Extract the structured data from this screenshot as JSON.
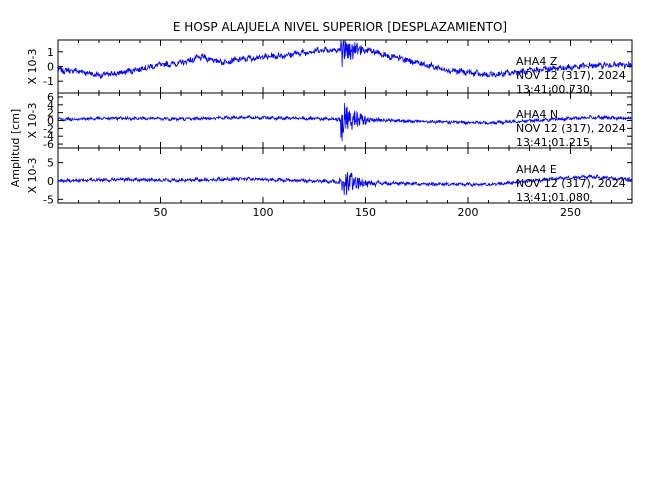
{
  "chart_data": {
    "type": "line",
    "title": "E HOSP ALAJUELA NIVEL SUPERIOR [DESPLAZAMIENTO]",
    "ylabel": "Amplitud [cm]",
    "xlim": [
      0,
      280
    ],
    "x_ticks": [
      50,
      100,
      150,
      200,
      250
    ],
    "line_color": "#0000ff",
    "event_x": 138,
    "panels": [
      {
        "name": "Z",
        "scale_label": "X 10-3",
        "ylim": [
          -1.8,
          1.8
        ],
        "y_ticks": [
          -1,
          0,
          1
        ],
        "station_label": "AHA4   Z",
        "date_label": "NOV 12 (317), 2024",
        "time_label": "13:41:00.730",
        "trace_keypoints": [
          [
            0,
            -0.25
          ],
          [
            10,
            -0.3
          ],
          [
            20,
            -0.6
          ],
          [
            30,
            -0.45
          ],
          [
            40,
            -0.15
          ],
          [
            50,
            0.1
          ],
          [
            60,
            0.25
          ],
          [
            70,
            0.65
          ],
          [
            80,
            0.3
          ],
          [
            90,
            0.5
          ],
          [
            100,
            0.65
          ],
          [
            110,
            0.75
          ],
          [
            120,
            0.95
          ],
          [
            130,
            1.15
          ],
          [
            138,
            1.1
          ],
          [
            150,
            1.15
          ],
          [
            160,
            0.75
          ],
          [
            170,
            0.45
          ],
          [
            180,
            0.1
          ],
          [
            190,
            -0.25
          ],
          [
            200,
            -0.4
          ],
          [
            210,
            -0.6
          ],
          [
            220,
            -0.45
          ],
          [
            230,
            -0.3
          ],
          [
            240,
            -0.15
          ],
          [
            250,
            -0.05
          ],
          [
            260,
            0.05
          ],
          [
            270,
            0.1
          ],
          [
            280,
            0.1
          ]
        ],
        "noise": 0.18,
        "burst_amp": 1.2
      },
      {
        "name": "N",
        "scale_label": "X 10-3",
        "ylim": [
          -7,
          7
        ],
        "y_ticks": [
          -6,
          -4,
          -2,
          0,
          2,
          4,
          6
        ],
        "station_label": "AHA4   N",
        "date_label": "NOV 12 (317), 2024",
        "time_label": "13:41:01.215",
        "trace_keypoints": [
          [
            0,
            0.3
          ],
          [
            30,
            0.6
          ],
          [
            60,
            0.4
          ],
          [
            90,
            0.8
          ],
          [
            120,
            0.5
          ],
          [
            150,
            0.2
          ],
          [
            180,
            -0.3
          ],
          [
            210,
            -0.6
          ],
          [
            240,
            0.2
          ],
          [
            260,
            0.8
          ],
          [
            280,
            0.5
          ]
        ],
        "noise": 0.35,
        "burst_amp": 6.5
      },
      {
        "name": "E",
        "scale_label": "X 10-3",
        "ylim": [
          -6,
          9
        ],
        "y_ticks": [
          -5,
          0,
          5
        ],
        "station_label": "AHA4   E",
        "date_label": "NOV 12 (317), 2024",
        "time_label": "13:41:01.080",
        "trace_keypoints": [
          [
            0,
            0.1
          ],
          [
            30,
            0.4
          ],
          [
            60,
            0.2
          ],
          [
            90,
            0.6
          ],
          [
            120,
            0.1
          ],
          [
            150,
            -0.5
          ],
          [
            180,
            -0.8
          ],
          [
            210,
            -1.0
          ],
          [
            240,
            0.5
          ],
          [
            260,
            1.2
          ],
          [
            280,
            0.4
          ]
        ],
        "noise": 0.4,
        "burst_amp": 5.5
      }
    ]
  }
}
